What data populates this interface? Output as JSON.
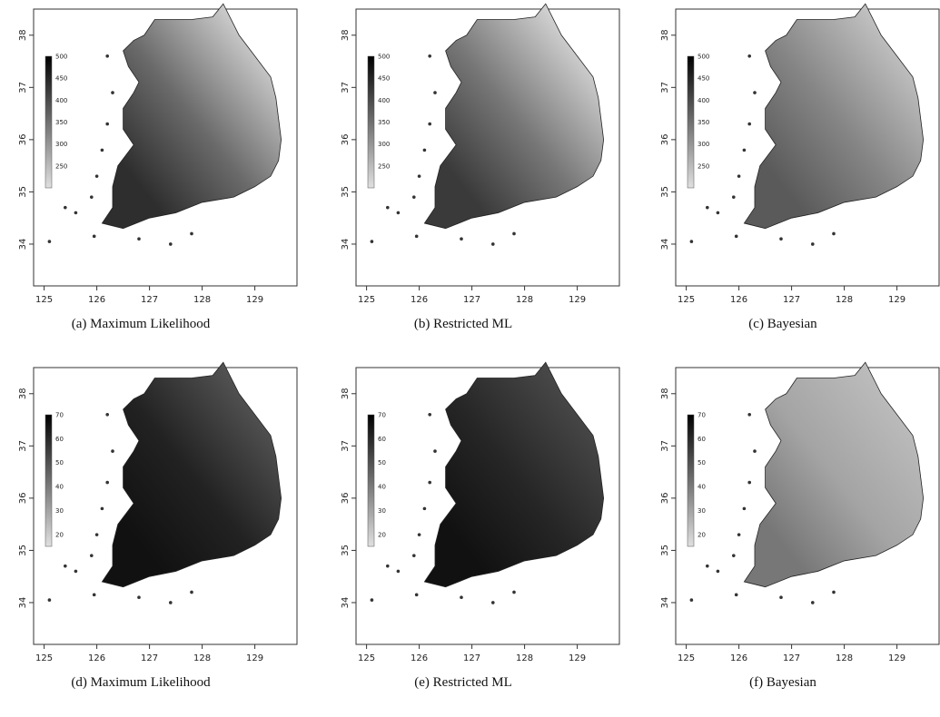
{
  "panels": [
    {
      "caption": "(a) Maximum Likelihood"
    },
    {
      "caption": "(b) Restricted ML"
    },
    {
      "caption": "(c) Bayesian"
    },
    {
      "caption": "(d) Maximum Likelihood"
    },
    {
      "caption": "(e) Restricted ML"
    },
    {
      "caption": "(f) Bayesian"
    }
  ],
  "map": {
    "xticks": [
      125,
      126,
      127,
      128,
      129
    ],
    "yticks": [
      34,
      35,
      36,
      37,
      38
    ],
    "xlim": [
      124.8,
      129.8
    ],
    "ylim": [
      33.2,
      38.5
    ]
  },
  "colorbars": [
    {
      "ticks": [
        500,
        450,
        400,
        350,
        300,
        250
      ],
      "lim": [
        200,
        500
      ]
    },
    {
      "ticks": [
        70,
        60,
        50,
        40,
        30,
        20
      ],
      "lim": [
        15,
        70
      ]
    }
  ]
}
